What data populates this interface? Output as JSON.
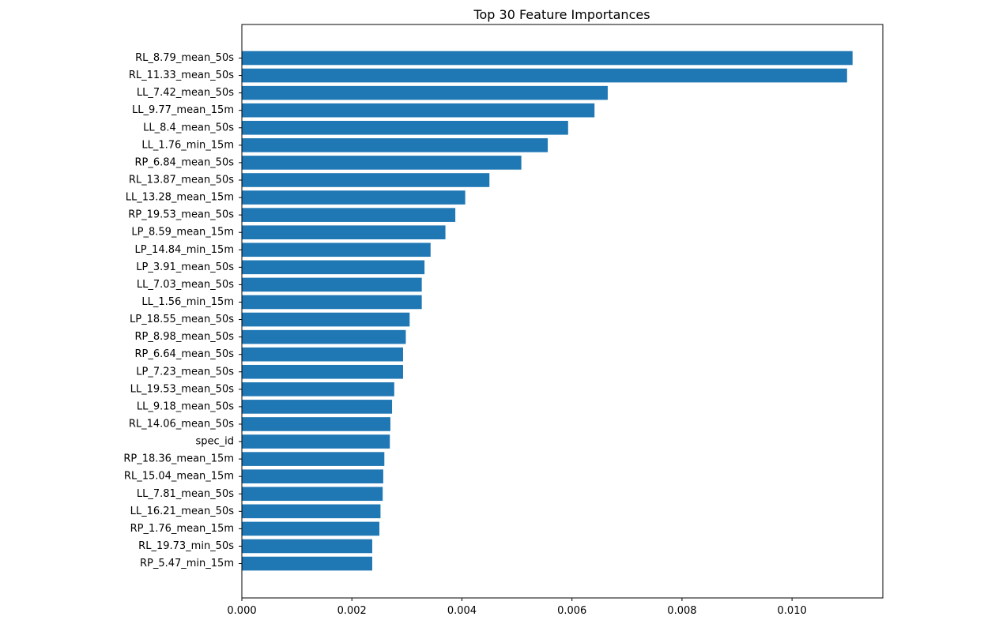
{
  "chart_data": {
    "type": "bar",
    "orientation": "horizontal",
    "title": "Top 30 Feature Importances",
    "xlabel": "",
    "ylabel": "",
    "xlim": [
      0,
      0.01165
    ],
    "grid": false,
    "legend": "none",
    "bar_color": "#1f77b4",
    "x_ticks": [
      "0.000",
      "0.002",
      "0.004",
      "0.006",
      "0.008",
      "0.010"
    ],
    "x_tick_values": [
      0,
      0.002,
      0.004,
      0.006,
      0.008,
      0.01
    ],
    "categories": [
      "RL_8.79_mean_50s",
      "RL_11.33_mean_50s",
      "LL_7.42_mean_50s",
      "LL_9.77_mean_15m",
      "LL_8.4_mean_50s",
      "LL_1.76_min_15m",
      "RP_6.84_mean_50s",
      "RL_13.87_mean_50s",
      "LL_13.28_mean_15m",
      "RP_19.53_mean_50s",
      "LP_8.59_mean_15m",
      "LP_14.84_min_15m",
      "LP_3.91_mean_50s",
      "LL_7.03_mean_50s",
      "LL_1.56_min_15m",
      "LP_18.55_mean_50s",
      "RP_8.98_mean_50s",
      "RP_6.64_mean_50s",
      "LP_7.23_mean_50s",
      "LL_19.53_mean_50s",
      "LL_9.18_mean_50s",
      "RL_14.06_mean_50s",
      "spec_id",
      "RP_18.36_mean_15m",
      "RL_15.04_mean_15m",
      "LL_7.81_mean_50s",
      "LL_16.21_mean_50s",
      "RP_1.76_mean_15m",
      "RL_19.73_min_50s",
      "RP_5.47_min_15m"
    ],
    "values": [
      0.0111,
      0.011,
      0.00665,
      0.00641,
      0.00593,
      0.00556,
      0.00508,
      0.0045,
      0.00406,
      0.00388,
      0.0037,
      0.00343,
      0.00332,
      0.00327,
      0.00327,
      0.00305,
      0.00298,
      0.00293,
      0.00293,
      0.00277,
      0.00273,
      0.0027,
      0.00269,
      0.00259,
      0.00257,
      0.00256,
      0.00252,
      0.0025,
      0.00237,
      0.00237
    ]
  }
}
